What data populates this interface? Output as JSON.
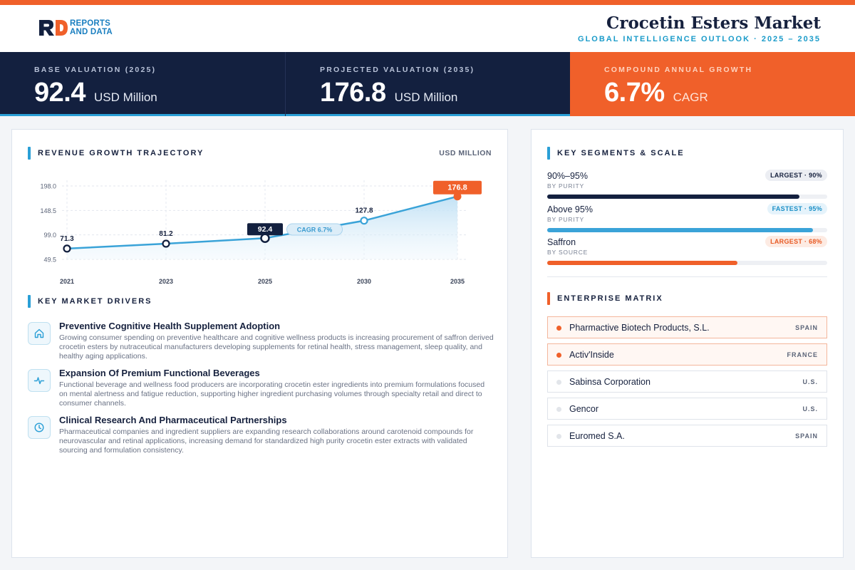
{
  "brand": {
    "line1": "REPORTS",
    "line2": "AND DATA"
  },
  "header": {
    "title": "Crocetin Esters Market",
    "subtitle": "GLOBAL INTELLIGENCE OUTLOOK  ·  2025 – 2035"
  },
  "kpis": [
    {
      "label": "BASE VALUATION (2025)",
      "value": "92.4",
      "unit": "USD Million"
    },
    {
      "label": "PROJECTED VALUATION (2035)",
      "value": "176.8",
      "unit": "USD Million"
    },
    {
      "label": "COMPOUND ANNUAL GROWTH",
      "value": "6.7%",
      "unit": "CAGR"
    }
  ],
  "chart_section": {
    "title": "REVENUE GROWTH TRAJECTORY",
    "units": "USD MILLION"
  },
  "chart_data": {
    "type": "area",
    "title": "",
    "xlabel": "",
    "ylabel": "",
    "categories": [
      "2021",
      "2023",
      "2025",
      "2030",
      "2035"
    ],
    "series": [
      {
        "values": [
          71.3,
          81.2,
          92.4,
          127.8,
          176.8
        ]
      }
    ],
    "value_labels": [
      "71.3",
      "81.2",
      "92.4",
      "127.8",
      "176.8"
    ],
    "yticks": [
      49.5,
      99.0,
      148.5,
      198.0
    ],
    "ytick_labels": [
      "49.5",
      "99.0",
      "148.5",
      "198.0"
    ],
    "ylim": [
      49.5,
      198.0
    ],
    "grid": true,
    "annotation": "CAGR 6.7%",
    "highlight": {
      "base_index": 2,
      "end_index": 4
    },
    "colors": {
      "line": "#3aa3d8",
      "area": "#cfe8f7",
      "dark": "#13203f",
      "accent": "#f0602a"
    }
  },
  "drivers_section": {
    "title": "KEY MARKET DRIVERS"
  },
  "drivers": [
    {
      "icon": "home-icon",
      "title": "Preventive Cognitive Health Supplement Adoption",
      "desc": "Growing consumer spending on preventive healthcare and cognitive wellness products is increasing procurement of saffron derived crocetin esters by nutraceutical manufacturers developing supplements for retinal health, stress management, sleep quality, and healthy aging applications."
    },
    {
      "icon": "pulse-icon",
      "title": "Expansion Of Premium Functional Beverages",
      "desc": "Functional beverage and wellness food producers are incorporating crocetin ester ingredients into premium formulations focused on mental alertness and fatigue reduction, supporting higher ingredient purchasing volumes through specialty retail and direct to consumer channels."
    },
    {
      "icon": "clock-icon",
      "title": "Clinical Research And Pharmaceutical Partnerships",
      "desc": "Pharmaceutical companies and ingredient suppliers are expanding research collaborations around carotenoid compounds for neurovascular and retinal applications, increasing demand for standardized high purity crocetin ester extracts with validated sourcing and formulation consistency."
    }
  ],
  "segments_section": {
    "title": "KEY SEGMENTS & SCALE"
  },
  "segments": [
    {
      "name": "90%–95%",
      "sub": "BY PURITY",
      "badge": "LARGEST · 90%",
      "share": 0.9,
      "color": "#13203f",
      "badge_style": "dark"
    },
    {
      "name": "Above 95%",
      "sub": "BY PURITY",
      "badge": "FASTEST · 95%",
      "share": 0.95,
      "color": "#3aa3d8",
      "badge_style": "blue"
    },
    {
      "name": "Saffron",
      "sub": "BY SOURCE",
      "badge": "LARGEST · 68%",
      "share": 0.68,
      "color": "#f0602a",
      "badge_style": "orange"
    }
  ],
  "matrix_section": {
    "title": "ENTERPRISE MATRIX"
  },
  "companies": [
    {
      "name": "Pharmactive Biotech Products, S.L.",
      "country": "SPAIN",
      "highlight": true
    },
    {
      "name": "Activ'Inside",
      "country": "FRANCE",
      "highlight": true
    },
    {
      "name": "Sabinsa Corporation",
      "country": "U.S.",
      "highlight": false
    },
    {
      "name": "Gencor",
      "country": "U.S.",
      "highlight": false
    },
    {
      "name": "Euromed S.A.",
      "country": "SPAIN",
      "highlight": false
    }
  ]
}
